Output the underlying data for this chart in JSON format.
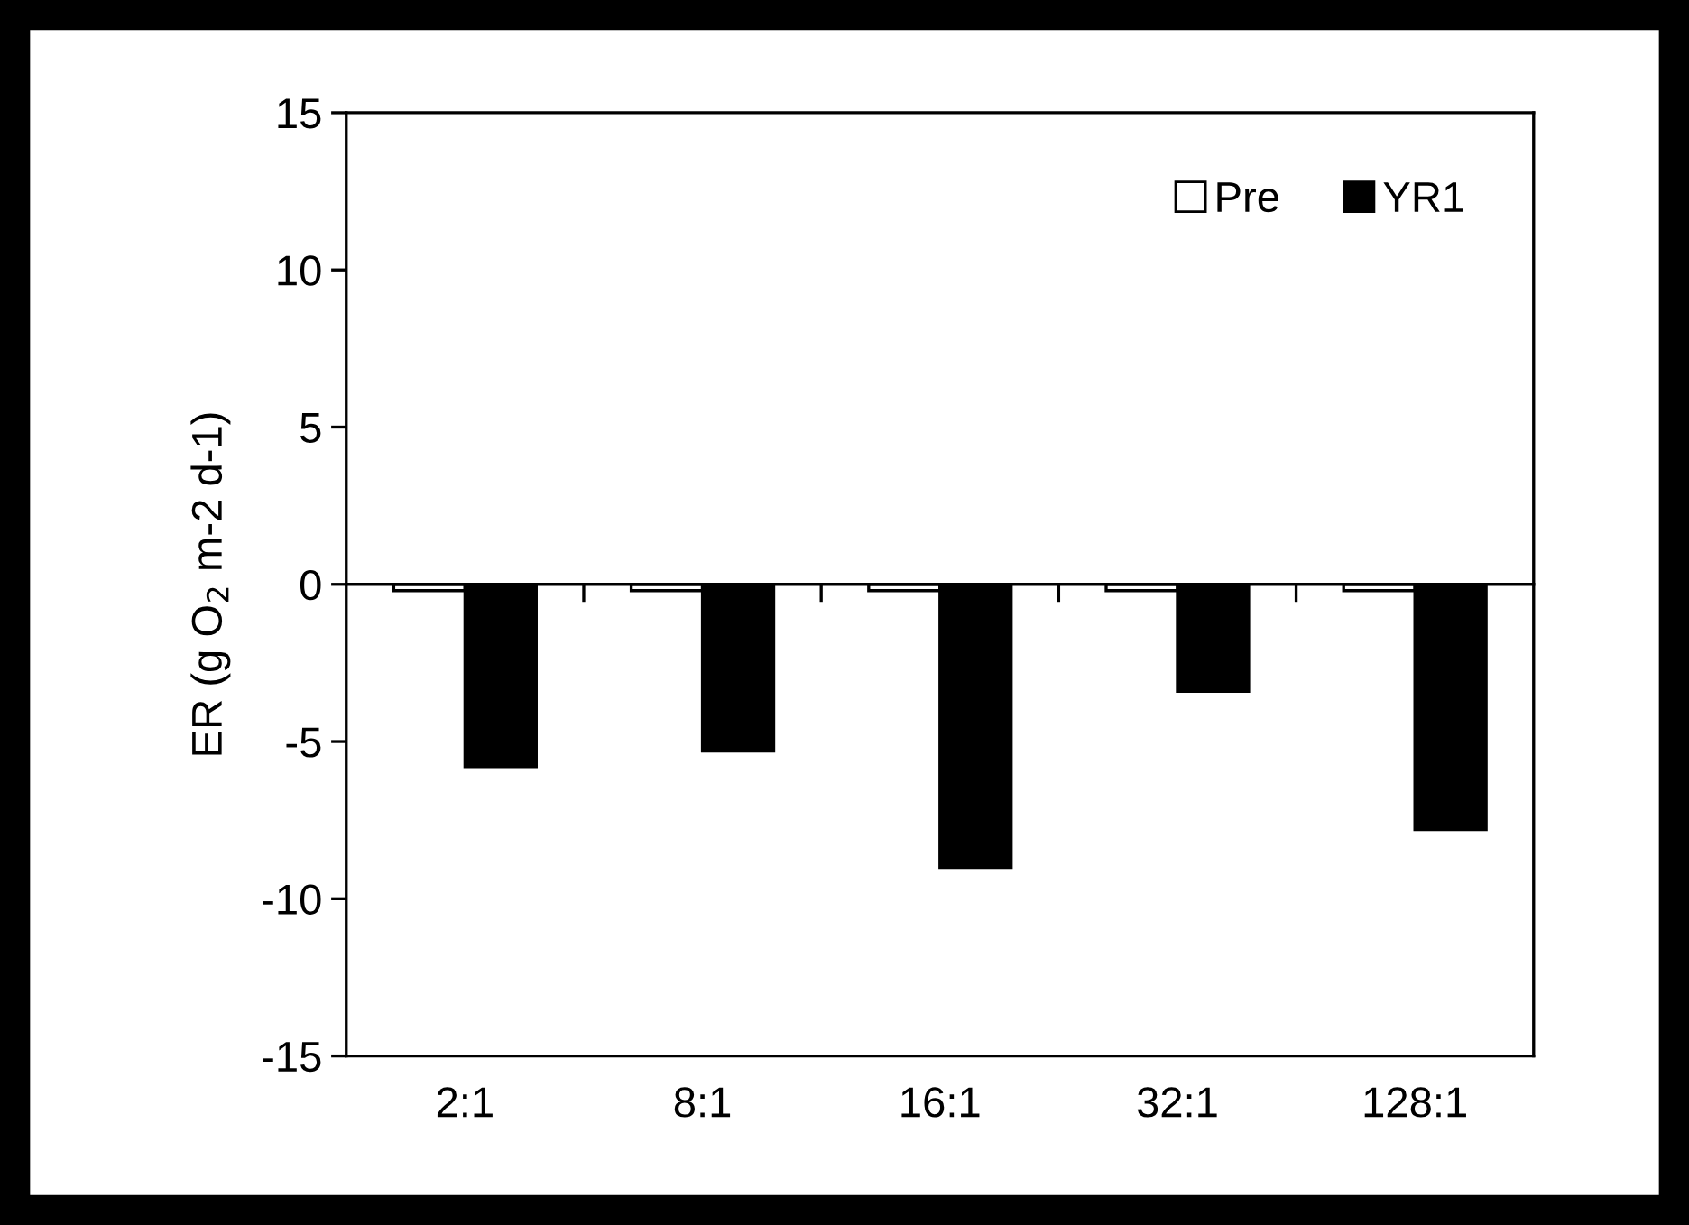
{
  "chart_data": {
    "type": "bar",
    "ylabel": "ER (g O$_{2}$ m-2 d-1)",
    "categories": [
      "2:1",
      "8:1",
      "16:1",
      "32:1",
      "128:1"
    ],
    "series": [
      {
        "name": "Pre",
        "color": "#ffffff",
        "values": [
          -0.2,
          -0.2,
          -0.2,
          -0.2,
          -0.2
        ]
      },
      {
        "name": "YR1",
        "color": "#000000",
        "values": [
          -5.8,
          -5.3,
          -9.0,
          -3.4,
          -7.8
        ]
      }
    ],
    "ylim": [
      -15,
      15
    ],
    "yticks": [
      -15,
      -10,
      -5,
      0,
      5,
      10,
      15
    ],
    "legend": "top right"
  }
}
